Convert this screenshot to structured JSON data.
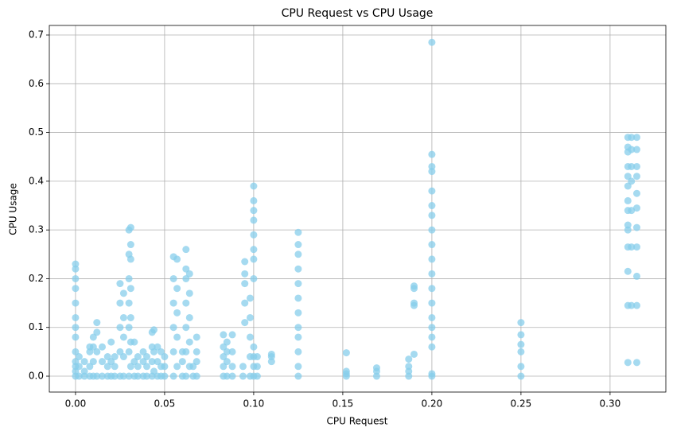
{
  "chart_data": {
    "type": "scatter",
    "title": "CPU Request vs CPU Usage",
    "x_label": "CPU Request",
    "y_label": "CPU Usage",
    "xlim": [
      -0.0147,
      0.3313
    ],
    "ylim": [
      -0.0326,
      0.7196
    ],
    "xticks": [
      {
        "value": 0,
        "label": "0.00"
      },
      {
        "value": 0.05,
        "label": "0.05"
      },
      {
        "value": 0.1,
        "label": "0.10"
      },
      {
        "value": 0.15,
        "label": "0.15"
      },
      {
        "value": 0.2,
        "label": "0.20"
      },
      {
        "value": 0.25,
        "label": "0.25"
      },
      {
        "value": 0.3,
        "label": "0.30"
      }
    ],
    "yticks": [
      {
        "value": 0,
        "label": "0.0"
      },
      {
        "value": 0.1,
        "label": "0.1"
      },
      {
        "value": 0.2,
        "label": "0.2"
      },
      {
        "value": 0.3,
        "label": "0.3"
      },
      {
        "value": 0.4,
        "label": "0.4"
      },
      {
        "value": 0.5,
        "label": "0.5"
      },
      {
        "value": 0.6,
        "label": "0.6"
      },
      {
        "value": 0.7,
        "label": "0.7"
      }
    ],
    "grid": true,
    "x": [
      0,
      0,
      0,
      0,
      0,
      0,
      0,
      0,
      0,
      0,
      0,
      0,
      0,
      0.002,
      0.002,
      0.002,
      0.005,
      0.005,
      0.005,
      0.008,
      0.008,
      0.008,
      0.008,
      0.01,
      0.01,
      0.01,
      0.01,
      0.012,
      0.012,
      0.012,
      0.012,
      0.015,
      0.015,
      0.015,
      0.018,
      0.018,
      0.018,
      0.02,
      0.02,
      0.02,
      0.022,
      0.022,
      0.022,
      0.025,
      0.025,
      0.025,
      0.025,
      0.025,
      0.027,
      0.027,
      0.027,
      0.027,
      0.027,
      0.03,
      0.03,
      0.03,
      0.03,
      0.03,
      0.03,
      0.03,
      0.031,
      0.031,
      0.031,
      0.031,
      0.031,
      0.031,
      0.031,
      0.033,
      0.033,
      0.033,
      0.035,
      0.035,
      0.035,
      0.038,
      0.038,
      0.038,
      0.04,
      0.04,
      0.04,
      0.043,
      0.043,
      0.043,
      0.043,
      0.044,
      0.044,
      0.044,
      0.046,
      0.046,
      0.046,
      0.048,
      0.048,
      0.048,
      0.05,
      0.05,
      0.05,
      0.055,
      0.055,
      0.055,
      0.055,
      0.055,
      0.055,
      0.057,
      0.057,
      0.057,
      0.057,
      0.057,
      0.06,
      0.06,
      0.06,
      0.062,
      0.062,
      0.062,
      0.062,
      0.062,
      0.062,
      0.062,
      0.064,
      0.064,
      0.064,
      0.064,
      0.064,
      0.066,
      0.066,
      0.068,
      0.068,
      0.068,
      0.068,
      0.083,
      0.083,
      0.083,
      0.083,
      0.083,
      0.085,
      0.085,
      0.085,
      0.085,
      0.088,
      0.088,
      0.088,
      0.088,
      0.094,
      0.094,
      0.095,
      0.095,
      0.095,
      0.095,
      0.095,
      0.098,
      0.098,
      0.098,
      0.098,
      0.098,
      0.1,
      0.1,
      0.1,
      0.1,
      0.1,
      0.1,
      0.1,
      0.1,
      0.1,
      0.1,
      0.1,
      0.1,
      0.102,
      0.102,
      0.102,
      0.11,
      0.11,
      0.11,
      0.125,
      0.125,
      0.125,
      0.125,
      0.125,
      0.125,
      0.125,
      0.125,
      0.125,
      0.125,
      0.125,
      0.125,
      0.152,
      0.152,
      0.152,
      0.152,
      0.169,
      0.169,
      0.169,
      0.187,
      0.187,
      0.187,
      0.187,
      0.19,
      0.19,
      0.19,
      0.19,
      0.19,
      0.2,
      0.2,
      0.2,
      0.2,
      0.2,
      0.2,
      0.2,
      0.2,
      0.2,
      0.2,
      0.2,
      0.2,
      0.2,
      0.2,
      0.2,
      0.2,
      0.2,
      0.2,
      0.2,
      0.25,
      0.25,
      0.25,
      0.25,
      0.25,
      0.25,
      0.31,
      0.31,
      0.31,
      0.31,
      0.31,
      0.31,
      0.31,
      0.31,
      0.31,
      0.31,
      0.31,
      0.31,
      0.31,
      0.31,
      0.312,
      0.312,
      0.312,
      0.312,
      0.312,
      0.312,
      0.312,
      0.315,
      0.315,
      0.315,
      0.315,
      0.315,
      0.315,
      0.315,
      0.315,
      0.315,
      0.315,
      0.315
    ],
    "series": [
      {
        "name": "CPU Usage",
        "color": "#87ceeb",
        "values": [
          0,
          0.01,
          0.02,
          0.03,
          0.05,
          0.08,
          0.1,
          0.12,
          0.15,
          0.18,
          0.2,
          0.22,
          0.23,
          0,
          0.02,
          0.04,
          0,
          0.01,
          0.03,
          0,
          0.02,
          0.05,
          0.06,
          0,
          0.03,
          0.06,
          0.08,
          0,
          0.05,
          0.09,
          0.11,
          0,
          0.03,
          0.06,
          0,
          0.02,
          0.04,
          0,
          0.03,
          0.07,
          0,
          0.02,
          0.04,
          0,
          0.05,
          0.1,
          0.15,
          0.19,
          0,
          0.04,
          0.08,
          0.12,
          0.17,
          0,
          0.05,
          0.1,
          0.15,
          0.2,
          0.25,
          0.3,
          0.02,
          0.07,
          0.12,
          0.18,
          0.24,
          0.27,
          0.305,
          0,
          0.03,
          0.07,
          0,
          0.02,
          0.04,
          0,
          0.03,
          0.05,
          0,
          0.02,
          0.04,
          0,
          0.03,
          0.06,
          0.09,
          0.01,
          0.05,
          0.095,
          0,
          0.03,
          0.06,
          0,
          0.02,
          0.05,
          0,
          0.02,
          0.04,
          0,
          0.05,
          0.1,
          0.15,
          0.2,
          0.245,
          0.02,
          0.08,
          0.13,
          0.18,
          0.24,
          0,
          0.03,
          0.05,
          0,
          0.05,
          0.1,
          0.15,
          0.2,
          0.22,
          0.26,
          0.02,
          0.07,
          0.12,
          0.17,
          0.21,
          0,
          0.02,
          0,
          0.03,
          0.05,
          0.08,
          0,
          0.02,
          0.04,
          0.06,
          0.085,
          0,
          0.03,
          0.05,
          0.07,
          0,
          0.02,
          0.05,
          0.085,
          0,
          0.02,
          0.11,
          0.15,
          0.19,
          0.21,
          0.235,
          0,
          0.04,
          0.08,
          0.12,
          0.16,
          0,
          0.02,
          0.04,
          0.06,
          0.2,
          0.24,
          0.26,
          0.29,
          0.32,
          0.34,
          0.36,
          0.39,
          0,
          0.02,
          0.04,
          0.03,
          0.04,
          0.045,
          0,
          0.02,
          0.05,
          0.08,
          0.1,
          0.13,
          0.16,
          0.19,
          0.22,
          0.25,
          0.27,
          0.295,
          0,
          0.005,
          0.01,
          0.048,
          0,
          0.01,
          0.017,
          0,
          0.01,
          0.02,
          0.035,
          0.045,
          0.145,
          0.15,
          0.18,
          0.185,
          0,
          0.005,
          0.06,
          0.08,
          0.1,
          0.12,
          0.15,
          0.18,
          0.21,
          0.24,
          0.27,
          0.3,
          0.33,
          0.35,
          0.38,
          0.42,
          0.43,
          0.455,
          0.685,
          0,
          0.02,
          0.05,
          0.065,
          0.085,
          0.11,
          0.028,
          0.145,
          0.215,
          0.265,
          0.3,
          0.31,
          0.34,
          0.36,
          0.39,
          0.41,
          0.43,
          0.46,
          0.47,
          0.49,
          0.145,
          0.265,
          0.34,
          0.4,
          0.43,
          0.465,
          0.49,
          0.028,
          0.145,
          0.205,
          0.265,
          0.305,
          0.345,
          0.375,
          0.41,
          0.43,
          0.465,
          0.49
        ]
      }
    ]
  }
}
